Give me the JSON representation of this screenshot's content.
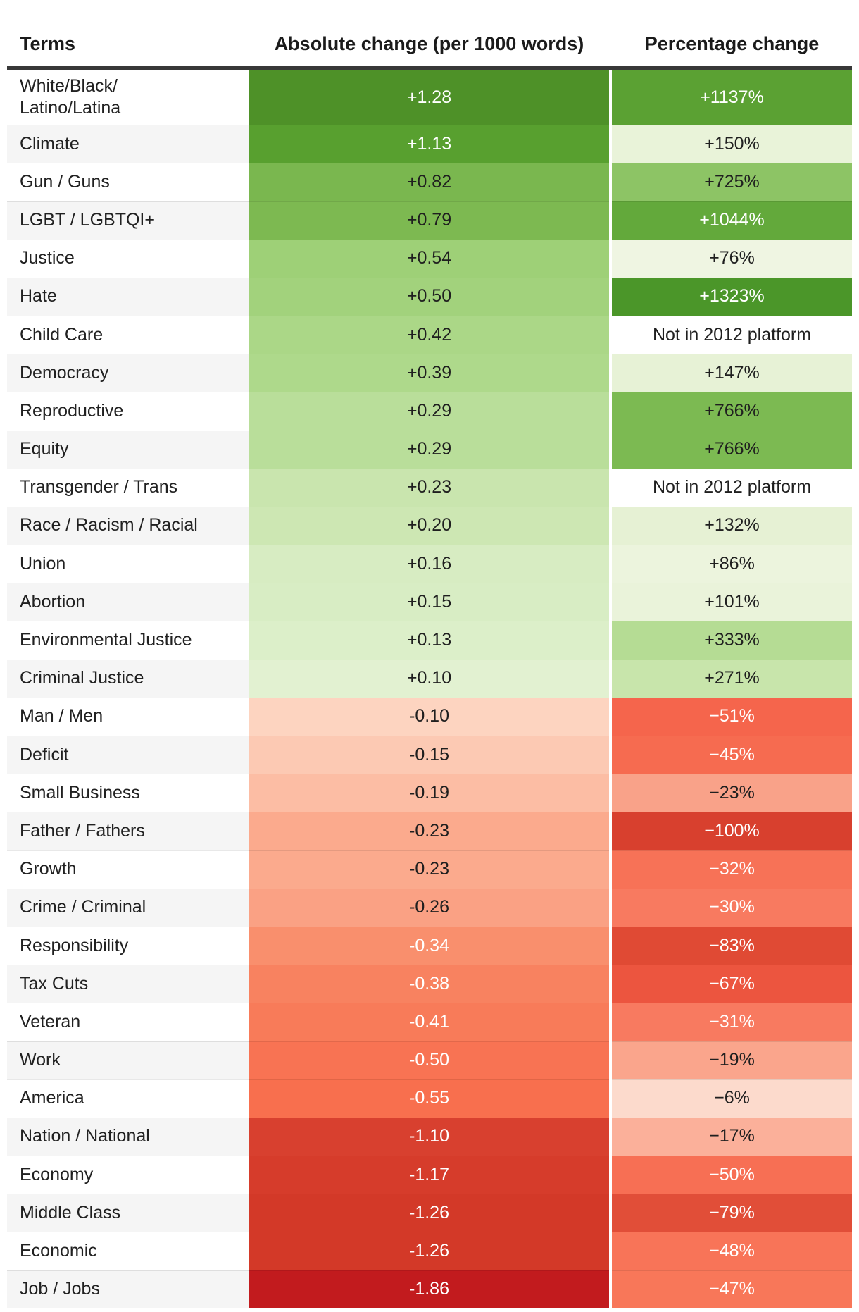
{
  "chart_data": {
    "type": "heatmap-table",
    "columns": [
      "Terms",
      "Absolute change (per 1000 words)",
      "Percentage change"
    ],
    "colors": {
      "header_border": "#383838",
      "row_alt_bg": "#f5f5f5",
      "row_bg": "#ffffff",
      "text_dark": "#1f1f1f",
      "text_light": "#ffffff",
      "positive_darkest": "#4b9629",
      "negative_darkest": "#c21b1e"
    },
    "rows": [
      {
        "term": "White/Black/\nLatino/Latina",
        "absolute": "+1.28",
        "absolute_bg": "#4e9128",
        "absolute_fg": "#ffffff",
        "percentage": "+1137%",
        "percentage_bg": "#5ba133",
        "percentage_fg": "#ffffff"
      },
      {
        "term": "Climate",
        "absolute": "+1.13",
        "absolute_bg": "#58a02f",
        "absolute_fg": "#ffffff",
        "percentage": "+150%",
        "percentage_bg": "#e9f3d9",
        "percentage_fg": "#1f1f1f"
      },
      {
        "term": "Gun / Guns",
        "absolute": "+0.82",
        "absolute_bg": "#7ab74f",
        "absolute_fg": "#1f1f1f",
        "percentage": "+725%",
        "percentage_bg": "#8dc465",
        "percentage_fg": "#1f1f1f"
      },
      {
        "term": "LGBT / LGBTQI+",
        "absolute": "+0.79",
        "absolute_bg": "#7db951",
        "absolute_fg": "#1f1f1f",
        "percentage": "+1044%",
        "percentage_bg": "#63a93b",
        "percentage_fg": "#ffffff"
      },
      {
        "term": "Justice",
        "absolute": "+0.54",
        "absolute_bg": "#9ed077",
        "absolute_fg": "#1f1f1f",
        "percentage": "+76%",
        "percentage_bg": "#eff5e2",
        "percentage_fg": "#1f1f1f"
      },
      {
        "term": "Hate",
        "absolute": "+0.50",
        "absolute_bg": "#a2d27c",
        "absolute_fg": "#1f1f1f",
        "percentage": "+1323%",
        "percentage_bg": "#4b9629",
        "percentage_fg": "#ffffff"
      },
      {
        "term": "Child Care",
        "absolute": "+0.42",
        "absolute_bg": "#abd787",
        "absolute_fg": "#1f1f1f",
        "percentage": "Not in 2012 platform",
        "percentage_bg": "#ffffff",
        "percentage_fg": "#1f1f1f"
      },
      {
        "term": "Democracy",
        "absolute": "+0.39",
        "absolute_bg": "#aed98b",
        "absolute_fg": "#1f1f1f",
        "percentage": "+147%",
        "percentage_bg": "#e7f2d6",
        "percentage_fg": "#1f1f1f"
      },
      {
        "term": "Reproductive",
        "absolute": "+0.29",
        "absolute_bg": "#b9de9a",
        "absolute_fg": "#1f1f1f",
        "percentage": "+766%",
        "percentage_bg": "#7cba52",
        "percentage_fg": "#1f1f1f"
      },
      {
        "term": "Equity",
        "absolute": "+0.29",
        "absolute_bg": "#b9de9a",
        "absolute_fg": "#1f1f1f",
        "percentage": "+766%",
        "percentage_bg": "#7cba52",
        "percentage_fg": "#1f1f1f"
      },
      {
        "term": "Transgender / Trans",
        "absolute": "+0.23",
        "absolute_bg": "#c9e5ae",
        "absolute_fg": "#1f1f1f",
        "percentage": "Not in 2012 platform",
        "percentage_bg": "#ffffff",
        "percentage_fg": "#1f1f1f"
      },
      {
        "term": "Race / Racism / Racial",
        "absolute": "+0.20",
        "absolute_bg": "#cde7b3",
        "absolute_fg": "#1f1f1f",
        "percentage": "+132%",
        "percentage_bg": "#e6f1d4",
        "percentage_fg": "#1f1f1f"
      },
      {
        "term": "Union",
        "absolute": "+0.16",
        "absolute_bg": "#d7ecc2",
        "absolute_fg": "#1f1f1f",
        "percentage": "+86%",
        "percentage_bg": "#ecf4dd",
        "percentage_fg": "#1f1f1f"
      },
      {
        "term": "Abortion",
        "absolute": "+0.15",
        "absolute_bg": "#d8edc4",
        "absolute_fg": "#1f1f1f",
        "percentage": "+101%",
        "percentage_bg": "#eaf3da",
        "percentage_fg": "#1f1f1f"
      },
      {
        "term": "Environmental Justice",
        "absolute": "+0.13",
        "absolute_bg": "#dcefc9",
        "absolute_fg": "#1f1f1f",
        "percentage": "+333%",
        "percentage_bg": "#b5dc94",
        "percentage_fg": "#1f1f1f"
      },
      {
        "term": "Criminal Justice",
        "absolute": "+0.10",
        "absolute_bg": "#e2f1d1",
        "absolute_fg": "#1f1f1f",
        "percentage": "+271%",
        "percentage_bg": "#c8e5ab",
        "percentage_fg": "#1f1f1f"
      },
      {
        "term": "Man / Men",
        "absolute": "-0.10",
        "absolute_bg": "#fdd4c0",
        "absolute_fg": "#1f1f1f",
        "percentage": "−51%",
        "percentage_bg": "#f5654c",
        "percentage_fg": "#ffffff"
      },
      {
        "term": "Deficit",
        "absolute": "-0.15",
        "absolute_bg": "#fcc9b3",
        "absolute_fg": "#1f1f1f",
        "percentage": "−45%",
        "percentage_bg": "#f66b50",
        "percentage_fg": "#ffffff"
      },
      {
        "term": "Small Business",
        "absolute": "-0.19",
        "absolute_bg": "#fcbda4",
        "absolute_fg": "#1f1f1f",
        "percentage": "−23%",
        "percentage_bg": "#f9a289",
        "percentage_fg": "#1f1f1f"
      },
      {
        "term": "Father / Fathers",
        "absolute": "-0.23",
        "absolute_bg": "#fbaa8d",
        "absolute_fg": "#1f1f1f",
        "percentage": "−100%",
        "percentage_bg": "#d8402e",
        "percentage_fg": "#ffffff"
      },
      {
        "term": "Growth",
        "absolute": "-0.23",
        "absolute_bg": "#fbaa8d",
        "absolute_fg": "#1f1f1f",
        "percentage": "−32%",
        "percentage_bg": "#f77257",
        "percentage_fg": "#ffffff"
      },
      {
        "term": "Crime / Criminal",
        "absolute": "-0.26",
        "absolute_bg": "#faa184",
        "absolute_fg": "#1f1f1f",
        "percentage": "−30%",
        "percentage_bg": "#f87a60",
        "percentage_fg": "#ffffff"
      },
      {
        "term": "Responsibility",
        "absolute": "-0.34",
        "absolute_bg": "#f98f6d",
        "absolute_fg": "#ffffff",
        "percentage": "−83%",
        "percentage_bg": "#e04a34",
        "percentage_fg": "#ffffff"
      },
      {
        "term": "Tax Cuts",
        "absolute": "-0.38",
        "absolute_bg": "#f88260",
        "absolute_fg": "#ffffff",
        "percentage": "−67%",
        "percentage_bg": "#ec553f",
        "percentage_fg": "#ffffff"
      },
      {
        "term": "Veteran",
        "absolute": "-0.41",
        "absolute_bg": "#f87b59",
        "absolute_fg": "#ffffff",
        "percentage": "−31%",
        "percentage_bg": "#f87a60",
        "percentage_fg": "#ffffff"
      },
      {
        "term": "Work",
        "absolute": "-0.50",
        "absolute_bg": "#f87353",
        "absolute_fg": "#ffffff",
        "percentage": "−19%",
        "percentage_bg": "#faa58c",
        "percentage_fg": "#1f1f1f"
      },
      {
        "term": "America",
        "absolute": "-0.55",
        "absolute_bg": "#f86f4e",
        "absolute_fg": "#ffffff",
        "percentage": "−6%",
        "percentage_bg": "#fcdacc",
        "percentage_fg": "#1f1f1f"
      },
      {
        "term": "Nation / National",
        "absolute": "-1.10",
        "absolute_bg": "#d8402f",
        "absolute_fg": "#ffffff",
        "percentage": "−17%",
        "percentage_bg": "#fbb09a",
        "percentage_fg": "#1f1f1f"
      },
      {
        "term": "Economy",
        "absolute": "-1.17",
        "absolute_bg": "#d63c2b",
        "absolute_fg": "#ffffff",
        "percentage": "−50%",
        "percentage_bg": "#f76f54",
        "percentage_fg": "#ffffff"
      },
      {
        "term": "Middle Class",
        "absolute": "-1.26",
        "absolute_bg": "#d33928",
        "absolute_fg": "#ffffff",
        "percentage": "−79%",
        "percentage_bg": "#e14e38",
        "percentage_fg": "#ffffff"
      },
      {
        "term": "Economic",
        "absolute": "-1.26",
        "absolute_bg": "#d33928",
        "absolute_fg": "#ffffff",
        "percentage": "−48%",
        "percentage_bg": "#f87458",
        "percentage_fg": "#ffffff"
      },
      {
        "term": "Job / Jobs",
        "absolute": "-1.86",
        "absolute_bg": "#c21b1e",
        "absolute_fg": "#ffffff",
        "percentage": "−47%",
        "percentage_bg": "#f87759",
        "percentage_fg": "#ffffff"
      }
    ]
  }
}
